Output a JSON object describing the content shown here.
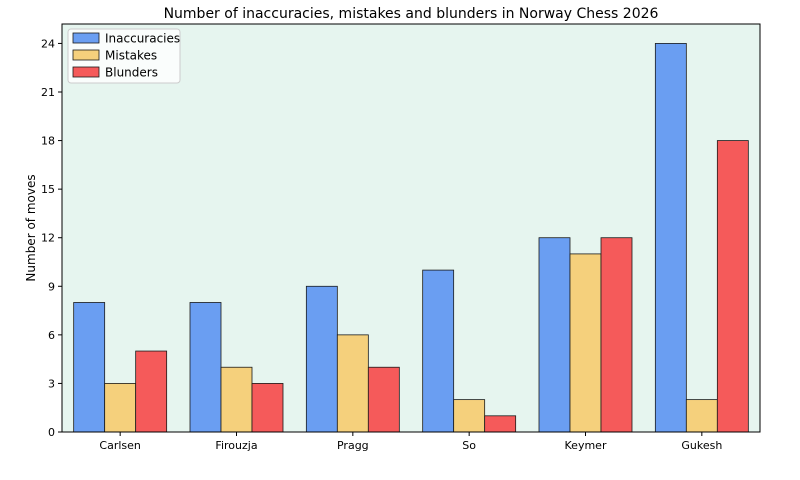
{
  "chart_data": {
    "type": "bar",
    "title": "Number of inaccuracies, mistakes and blunders in Norway Chess 2026",
    "xlabel": "",
    "ylabel": "Number of moves",
    "categories": [
      "Carlsen",
      "Firouzja",
      "Pragg",
      "So",
      "Keymer",
      "Gukesh"
    ],
    "series": [
      {
        "name": "Inaccuracies",
        "color": "#6a9ef2",
        "values": [
          8,
          8,
          9,
          10,
          12,
          24
        ]
      },
      {
        "name": "Mistakes",
        "color": "#f5d07c",
        "values": [
          3,
          4,
          6,
          2,
          11,
          2
        ]
      },
      {
        "name": "Blunders",
        "color": "#f55a5a",
        "values": [
          5,
          3,
          4,
          1,
          12,
          18
        ]
      }
    ],
    "ylim": [
      0,
      25.2
    ],
    "yticks": [
      0,
      3,
      6,
      9,
      12,
      15,
      18,
      21,
      24
    ],
    "grid": false,
    "legend": "top-left",
    "plot_background": "#e6f5ef"
  }
}
